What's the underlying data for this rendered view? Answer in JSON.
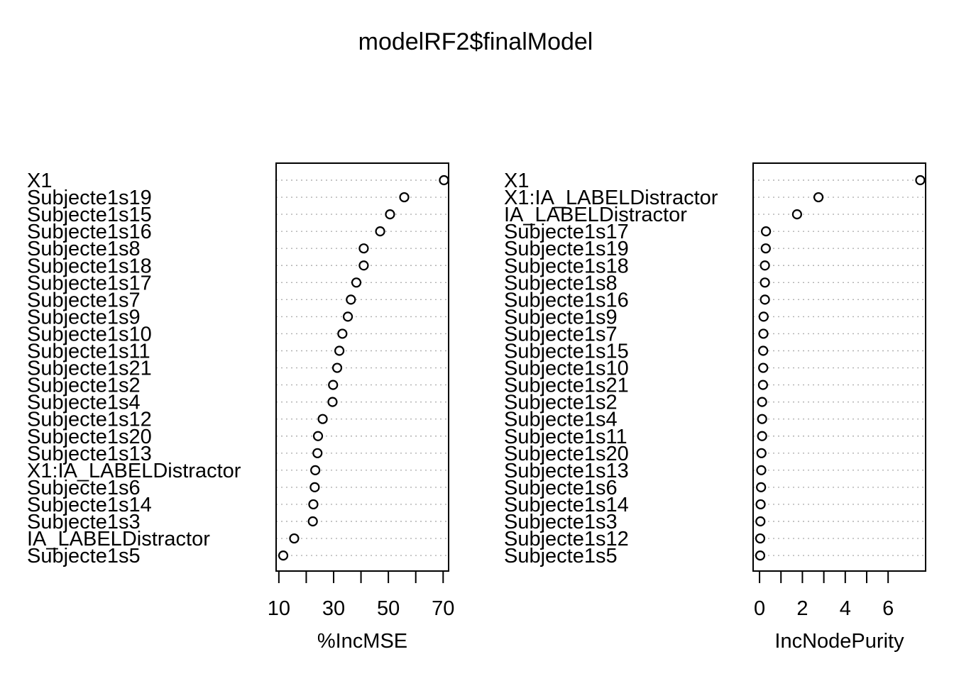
{
  "title": "modelRF2$finalModel",
  "chart_data": [
    {
      "type": "scatter",
      "style": "dotchart",
      "xlabel": "%IncMSE",
      "xticks": [
        10,
        30,
        50,
        70
      ],
      "xminor": [
        20,
        40,
        60
      ],
      "xlim": [
        9,
        72
      ],
      "categories": [
        "X1",
        "Subjecte1s19",
        "Subjecte1s15",
        "Subjecte1s16",
        "Subjecte1s8",
        "Subjecte1s18",
        "Subjecte1s17",
        "Subjecte1s7",
        "Subjecte1s9",
        "Subjecte1s10",
        "Subjecte1s11",
        "Subjecte1s21",
        "Subjecte1s2",
        "Subjecte1s4",
        "Subjecte1s12",
        "Subjecte1s20",
        "Subjecte1s13",
        "X1:IA_LABELDistractor",
        "Subjecte1s6",
        "Subjecte1s14",
        "Subjecte1s3",
        "IA_LABELDistractor",
        "Subjecte1s5"
      ],
      "values": [
        70.3,
        55.8,
        50.6,
        47.0,
        41.0,
        41.0,
        38.3,
        36.3,
        35.2,
        33.2,
        32.1,
        31.3,
        29.8,
        29.6,
        26.0,
        24.3,
        24.1,
        23.3,
        23.1,
        22.6,
        22.4,
        15.6,
        11.6
      ]
    },
    {
      "type": "scatter",
      "style": "dotchart",
      "xlabel": "IncNodePurity",
      "xticks": [
        0,
        2,
        4,
        6
      ],
      "xminor": [
        1,
        3,
        5
      ],
      "xlim": [
        -0.3,
        7.75
      ],
      "categories": [
        "X1",
        "X1:IA_LABELDistractor",
        "IA_LABELDistractor",
        "Subjecte1s17",
        "Subjecte1s19",
        "Subjecte1s18",
        "Subjecte1s8",
        "Subjecte1s16",
        "Subjecte1s9",
        "Subjecte1s7",
        "Subjecte1s15",
        "Subjecte1s10",
        "Subjecte1s21",
        "Subjecte1s2",
        "Subjecte1s4",
        "Subjecte1s11",
        "Subjecte1s20",
        "Subjecte1s13",
        "Subjecte1s6",
        "Subjecte1s14",
        "Subjecte1s3",
        "Subjecte1s12",
        "Subjecte1s5"
      ],
      "values": [
        7.5,
        2.75,
        1.75,
        0.3,
        0.29,
        0.25,
        0.25,
        0.25,
        0.19,
        0.18,
        0.17,
        0.17,
        0.16,
        0.12,
        0.12,
        0.12,
        0.09,
        0.08,
        0.07,
        0.05,
        0.04,
        0.03,
        0.03
      ]
    }
  ]
}
